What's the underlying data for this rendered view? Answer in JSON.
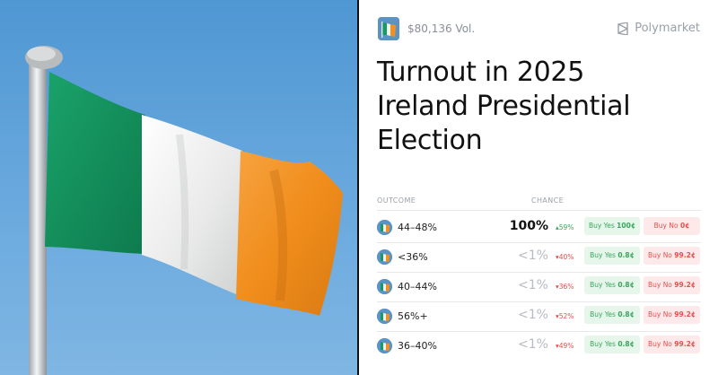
{
  "header": {
    "volume": "$80,136 Vol.",
    "brand": "Polymarket"
  },
  "market": {
    "title": "Turnout in 2025 Ireland Presidential Election"
  },
  "table": {
    "col_outcome": "OUTCOME",
    "col_chance": "CHANCE",
    "rows": [
      {
        "label": "44–48%",
        "chance": "100%",
        "change": "59%",
        "direction": "up",
        "buy_yes": "Buy Yes",
        "yes_price": "100¢",
        "buy_no": "Buy No",
        "no_price": "0¢"
      },
      {
        "label": "<36%",
        "chance": "<1%",
        "change": "40%",
        "direction": "down",
        "buy_yes": "Buy Yes",
        "yes_price": "0.8¢",
        "buy_no": "Buy No",
        "no_price": "99.2¢"
      },
      {
        "label": "40–44%",
        "chance": "<1%",
        "change": "36%",
        "direction": "down",
        "buy_yes": "Buy Yes",
        "yes_price": "0.8¢",
        "buy_no": "Buy No",
        "no_price": "99.2¢"
      },
      {
        "label": "56%+",
        "chance": "<1%",
        "change": "52%",
        "direction": "down",
        "buy_yes": "Buy Yes",
        "yes_price": "0.8¢",
        "buy_no": "Buy No",
        "no_price": "99.2¢"
      },
      {
        "label": "36–40%",
        "chance": "<1%",
        "change": "49%",
        "direction": "down",
        "buy_yes": "Buy Yes",
        "yes_price": "0.8¢",
        "buy_no": "Buy No",
        "no_price": "99.2¢"
      }
    ]
  },
  "colors": {
    "green": "#169b62",
    "white": "#f4f4f2",
    "orange": "#f3901f",
    "sky": "#5a9fd8",
    "up": "#3aa55d",
    "down": "#e2504c"
  },
  "icons": {
    "hero": "irish-flag-photo",
    "market": "irish-flag-thumbnail",
    "brand": "polymarket-logo-icon"
  }
}
